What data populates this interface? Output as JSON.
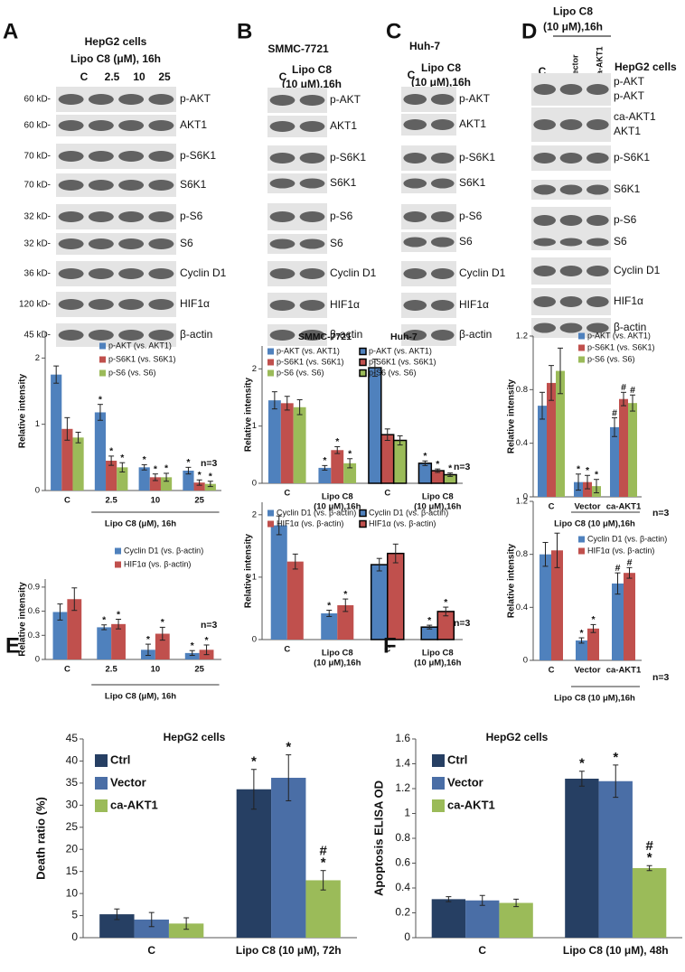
{
  "blots": [
    {
      "letter": "A",
      "header": [
        "HepG2 cells",
        "Lipo C8 (μM), 16h"
      ],
      "columns": [
        "C",
        "2.5",
        "10",
        "25"
      ],
      "rows": [
        {
          "labels": [
            "p-AKT"
          ],
          "kd": "60 kD-"
        },
        {
          "labels": [
            "AKT1"
          ],
          "kd": "60 kD-"
        },
        {
          "labels": [
            "p-S6K1"
          ],
          "kd": "70 kD-"
        },
        {
          "labels": [
            "S6K1"
          ],
          "kd": "70 kD-"
        },
        {
          "labels": [
            "p-S6"
          ],
          "kd": "32 kD-"
        },
        {
          "labels": [
            "S6"
          ],
          "kd": "32 kD-"
        },
        {
          "labels": [
            "Cyclin D1"
          ],
          "kd": "36 kD-"
        },
        {
          "labels": [
            "HIF1α"
          ],
          "kd": "120 kD-"
        },
        {
          "labels": [
            "β-actin"
          ],
          "kd": "45 kD-"
        }
      ]
    },
    {
      "letter": "B",
      "header": [
        "SMMC-7721"
      ],
      "columns": [
        "C",
        "Lipo C8 (10 μM),16h"
      ],
      "rows": [
        {
          "labels": [
            "p-AKT"
          ]
        },
        {
          "labels": [
            "AKT1"
          ]
        },
        {
          "labels": [
            "p-S6K1"
          ]
        },
        {
          "labels": [
            "S6K1"
          ]
        },
        {
          "labels": [
            "p-S6"
          ]
        },
        {
          "labels": [
            "S6"
          ]
        },
        {
          "labels": [
            "Cyclin D1"
          ]
        },
        {
          "labels": [
            "HIF1α"
          ]
        },
        {
          "labels": [
            "β-actin"
          ]
        }
      ]
    },
    {
      "letter": "C",
      "header": [
        "Huh-7"
      ],
      "columns": [
        "C",
        "Lipo C8 (10 μM),16h"
      ],
      "rows": [
        {
          "labels": [
            "p-AKT"
          ]
        },
        {
          "labels": [
            "AKT1"
          ]
        },
        {
          "labels": [
            "p-S6K1"
          ]
        },
        {
          "labels": [
            "S6K1"
          ]
        },
        {
          "labels": [
            "p-S6"
          ]
        },
        {
          "labels": [
            "S6"
          ]
        },
        {
          "labels": [
            "Cyclin D1"
          ]
        },
        {
          "labels": [
            "HIF1α"
          ]
        },
        {
          "labels": [
            "β-actin"
          ]
        }
      ]
    },
    {
      "letter": "D",
      "header": [
        "Lipo C8 (10 μM),16h"
      ],
      "side_note": "HepG2 cells",
      "columns": [
        "C",
        "Vector",
        "ca-AKT1"
      ],
      "rows": [
        {
          "labels": [
            "p-AKT",
            "p-AKT"
          ]
        },
        {
          "labels": [
            "ca-AKT1",
            "AKT1"
          ]
        },
        {
          "labels": [
            "p-S6K1"
          ]
        },
        {
          "labels": [
            "S6K1"
          ]
        },
        {
          "labels": [
            "p-S6"
          ]
        },
        {
          "labels": [
            "S6"
          ]
        },
        {
          "labels": [
            "Cyclin D1"
          ]
        },
        {
          "labels": [
            "HIF1α"
          ]
        },
        {
          "labels": [
            "β-actin"
          ]
        }
      ]
    }
  ],
  "chart_data": [
    {
      "type": "bar",
      "y_label": "Relative intensity",
      "x_label": "Lipo C8 (μM), 16h",
      "annotation": "n=3",
      "categories": [
        "C",
        "2.5",
        "10",
        "25"
      ],
      "ylim": [
        0,
        2.4
      ],
      "yticks": [
        0,
        1,
        2
      ],
      "series": [
        {
          "name": "p-AKT (vs. AKT1)",
          "color": "#4f81bd",
          "values": [
            1.75,
            1.18,
            0.35,
            0.3
          ],
          "errors": [
            0.13,
            0.12,
            0.04,
            0.05
          ],
          "sig": [
            null,
            [
              "*"
            ],
            [
              "*"
            ],
            [
              "*"
            ]
          ]
        },
        {
          "name": "p-S6K1 (vs. S6K1)",
          "color": "#c0504d",
          "values": [
            0.93,
            0.45,
            0.2,
            0.12
          ],
          "errors": [
            0.17,
            0.07,
            0.05,
            0.04
          ],
          "sig": [
            null,
            [
              "*"
            ],
            [
              "*"
            ],
            [
              "*"
            ]
          ]
        },
        {
          "name": "p-S6 (vs. S6)",
          "color": "#9bbb59",
          "values": [
            0.8,
            0.35,
            0.2,
            0.1
          ],
          "errors": [
            0.08,
            0.07,
            0.06,
            0.04
          ],
          "sig": [
            null,
            [
              "*"
            ],
            [
              "*"
            ],
            [
              "*"
            ]
          ]
        }
      ]
    },
    {
      "type": "bar",
      "y_label": "Relative intensity",
      "x_label": "Lipo C8 (μM), 16h",
      "annotation": "n=3",
      "categories": [
        "C",
        "2.5",
        "10",
        "25"
      ],
      "ylim": [
        0,
        1
      ],
      "yticks": [
        0,
        0.3,
        0.6,
        0.9
      ],
      "series": [
        {
          "name": "Cyclin D1 (vs. β-actin)",
          "color": "#4f81bd",
          "values": [
            0.59,
            0.4,
            0.12,
            0.08
          ],
          "errors": [
            0.1,
            0.03,
            0.07,
            0.03
          ],
          "sig": [
            null,
            [
              "*"
            ],
            [
              "*"
            ],
            [
              "*"
            ]
          ]
        },
        {
          "name": "HIF1α (vs. β-actin)",
          "color": "#c0504d",
          "values": [
            0.75,
            0.44,
            0.32,
            0.12
          ],
          "errors": [
            0.14,
            0.06,
            0.08,
            0.06
          ],
          "sig": [
            null,
            [
              "*"
            ],
            [
              "*"
            ],
            [
              "*"
            ]
          ]
        }
      ]
    },
    {
      "type": "bar",
      "y_label": "Relative intensity",
      "annotation": "n=3",
      "ylim": [
        0,
        2.4
      ],
      "yticks": [
        0,
        1,
        2
      ],
      "groups": [
        {
          "name": "SMMC-7721",
          "categories": [
            "C",
            "Lipo C8 (10 μM),16h"
          ],
          "series": [
            {
              "name": "p-AKT (vs. AKT1)",
              "color": "#4f81bd",
              "values": [
                1.45,
                0.27
              ],
              "errors": [
                0.15,
                0.04
              ],
              "sig": [
                null,
                [
                  "*"
                ]
              ]
            },
            {
              "name": "p-S6K1 (vs. S6K1)",
              "color": "#c0504d",
              "values": [
                1.4,
                0.58
              ],
              "errors": [
                0.12,
                0.06
              ],
              "sig": [
                null,
                [
                  "*"
                ]
              ]
            },
            {
              "name": "p-S6 (vs. S6)",
              "color": "#9bbb59",
              "values": [
                1.33,
                0.35
              ],
              "errors": [
                0.13,
                0.08
              ],
              "sig": [
                null,
                [
                  "*"
                ]
              ]
            }
          ]
        },
        {
          "name": "Huh-7",
          "categories": [
            "C",
            "Lipo C8 (10 μM),16h"
          ],
          "series": [
            {
              "name": "p-AKT (vs. AKT1)",
              "color": "#4f81bd",
              "outline": "#000000",
              "values": [
                2.02,
                0.35
              ],
              "errors": [
                0.15,
                0.04
              ],
              "sig": [
                null,
                [
                  "*"
                ]
              ]
            },
            {
              "name": "p-S6K1 (vs. S6K1)",
              "color": "#c0504d",
              "outline": "#000000",
              "values": [
                0.85,
                0.22
              ],
              "errors": [
                0.1,
                0.03
              ],
              "sig": [
                null,
                [
                  "*"
                ]
              ]
            },
            {
              "name": "p-S6 (vs. S6)",
              "color": "#9bbb59",
              "outline": "#000000",
              "values": [
                0.75,
                0.15
              ],
              "errors": [
                0.08,
                0.03
              ],
              "sig": [
                null,
                [
                  "*"
                ]
              ]
            }
          ]
        }
      ]
    },
    {
      "type": "bar",
      "y_label": "Relative intensity",
      "annotation": "n=3",
      "ylim": [
        0,
        2.2
      ],
      "yticks": [
        0,
        1,
        2
      ],
      "groups": [
        {
          "categories": [
            "C",
            "Lipo C8 (10 μM),16h"
          ],
          "series": [
            {
              "name": "Cyclin D1 (vs. β-actin)",
              "color": "#4f81bd",
              "values": [
                1.83,
                0.42
              ],
              "errors": [
                0.15,
                0.05
              ],
              "sig": [
                null,
                [
                  "*"
                ]
              ]
            },
            {
              "name": "HIF1α (vs. β-actin)",
              "color": "#c0504d",
              "values": [
                1.25,
                0.55
              ],
              "errors": [
                0.12,
                0.1
              ],
              "sig": [
                null,
                [
                  "*"
                ]
              ]
            }
          ]
        },
        {
          "categories": [
            "C",
            "Lipo C8 (10 μM),16h"
          ],
          "series": [
            {
              "name": "Cyclin D1 (vs. β-actin)",
              "color": "#4f81bd",
              "outline": "#000000",
              "values": [
                1.2,
                0.2
              ],
              "errors": [
                0.1,
                0.03
              ],
              "sig": [
                null,
                [
                  "*"
                ]
              ]
            },
            {
              "name": "HIF1α (vs. β-actin)",
              "color": "#c0504d",
              "outline": "#000000",
              "values": [
                1.38,
                0.45
              ],
              "errors": [
                0.15,
                0.07
              ],
              "sig": [
                null,
                [
                  "*"
                ]
              ]
            }
          ]
        }
      ]
    },
    {
      "type": "bar",
      "y_label": "Relative intensity",
      "x_label": "Lipo C8 (10 μM),16h",
      "annotation": "n=3",
      "categories": [
        "C",
        "Vector",
        "ca-AKT1"
      ],
      "ylim": [
        0,
        1.2
      ],
      "yticks": [
        0,
        0.4,
        0.8,
        1.2
      ],
      "series": [
        {
          "name": "p-AKT (vs. AKT1)",
          "color": "#4f81bd",
          "values": [
            0.68,
            0.11,
            0.52
          ],
          "errors": [
            0.1,
            0.06,
            0.07
          ],
          "sig": [
            null,
            [
              "*"
            ],
            [
              "#"
            ]
          ]
        },
        {
          "name": "p-S6K1 (vs. S6K1)",
          "color": "#c0504d",
          "values": [
            0.85,
            0.11,
            0.73
          ],
          "errors": [
            0.13,
            0.05,
            0.05
          ],
          "sig": [
            null,
            [
              "*"
            ],
            [
              "#"
            ]
          ]
        },
        {
          "name": "p-S6 (vs. S6)",
          "color": "#9bbb59",
          "values": [
            0.94,
            0.08,
            0.7
          ],
          "errors": [
            0.17,
            0.05,
            0.06
          ],
          "sig": [
            null,
            [
              "*"
            ],
            [
              "#"
            ]
          ]
        }
      ]
    },
    {
      "type": "bar",
      "y_label": "Relative intensity",
      "x_label": "Lipo C8 (10 μM),16h",
      "annotation": "n=3",
      "categories": [
        "C",
        "Vector",
        "ca-AKT1"
      ],
      "ylim": [
        0,
        1.2
      ],
      "yticks": [
        0,
        0.4,
        0.8,
        1.2
      ],
      "series": [
        {
          "name": "Cyclin D1 (vs. β-actin)",
          "color": "#4f81bd",
          "values": [
            0.8,
            0.15,
            0.58
          ],
          "errors": [
            0.09,
            0.02,
            0.08
          ],
          "sig": [
            null,
            [
              "*"
            ],
            [
              "#"
            ]
          ]
        },
        {
          "name": "HIF1α (vs. β-actin)",
          "color": "#c0504d",
          "values": [
            0.83,
            0.24,
            0.66
          ],
          "errors": [
            0.13,
            0.03,
            0.04
          ],
          "sig": [
            null,
            [
              "*"
            ],
            [
              "#"
            ]
          ]
        }
      ]
    },
    {
      "type": "bar",
      "panel": "E",
      "title": "HepG2 cells",
      "y_label": "Death ratio (%)",
      "categories": [
        "C",
        "Lipo C8 (10 μM), 72h"
      ],
      "ylim": [
        0,
        45
      ],
      "yticks": [
        0,
        5,
        10,
        15,
        20,
        25,
        30,
        35,
        40,
        45
      ],
      "series": [
        {
          "name": "Ctrl",
          "color": "#263f63",
          "values": [
            5.3,
            33.6
          ],
          "errors": [
            1.2,
            4.5
          ],
          "sig": [
            null,
            [
              "*"
            ]
          ]
        },
        {
          "name": "Vector",
          "color": "#4a6ea6",
          "values": [
            4.1,
            36.2
          ],
          "errors": [
            1.6,
            5.2
          ],
          "sig": [
            null,
            [
              "*"
            ]
          ]
        },
        {
          "name": "ca-AKT1",
          "color": "#9bbb59",
          "values": [
            3.2,
            13
          ],
          "errors": [
            1.3,
            2.2
          ],
          "sig": [
            null,
            [
              "#",
              "*"
            ]
          ]
        }
      ]
    },
    {
      "type": "bar",
      "panel": "F",
      "title": "HepG2 cells",
      "y_label": "Apoptosis ELISA OD",
      "categories": [
        "C",
        "Lipo C8 (10 μM), 48h"
      ],
      "ylim": [
        0,
        1.6
      ],
      "yticks": [
        0,
        0.2,
        0.4,
        0.6,
        0.8,
        1,
        1.2,
        1.4,
        1.6
      ],
      "series": [
        {
          "name": "Ctrl",
          "color": "#263f63",
          "values": [
            0.31,
            1.28
          ],
          "errors": [
            0.02,
            0.06
          ],
          "sig": [
            null,
            [
              "*"
            ]
          ]
        },
        {
          "name": "Vector",
          "color": "#4a6ea6",
          "values": [
            0.3,
            1.26
          ],
          "errors": [
            0.04,
            0.13
          ],
          "sig": [
            null,
            [
              "*"
            ]
          ]
        },
        {
          "name": "ca-AKT1",
          "color": "#9bbb59",
          "values": [
            0.28,
            0.56
          ],
          "errors": [
            0.03,
            0.02
          ],
          "sig": [
            null,
            [
              "#",
              "*"
            ]
          ]
        }
      ]
    }
  ]
}
